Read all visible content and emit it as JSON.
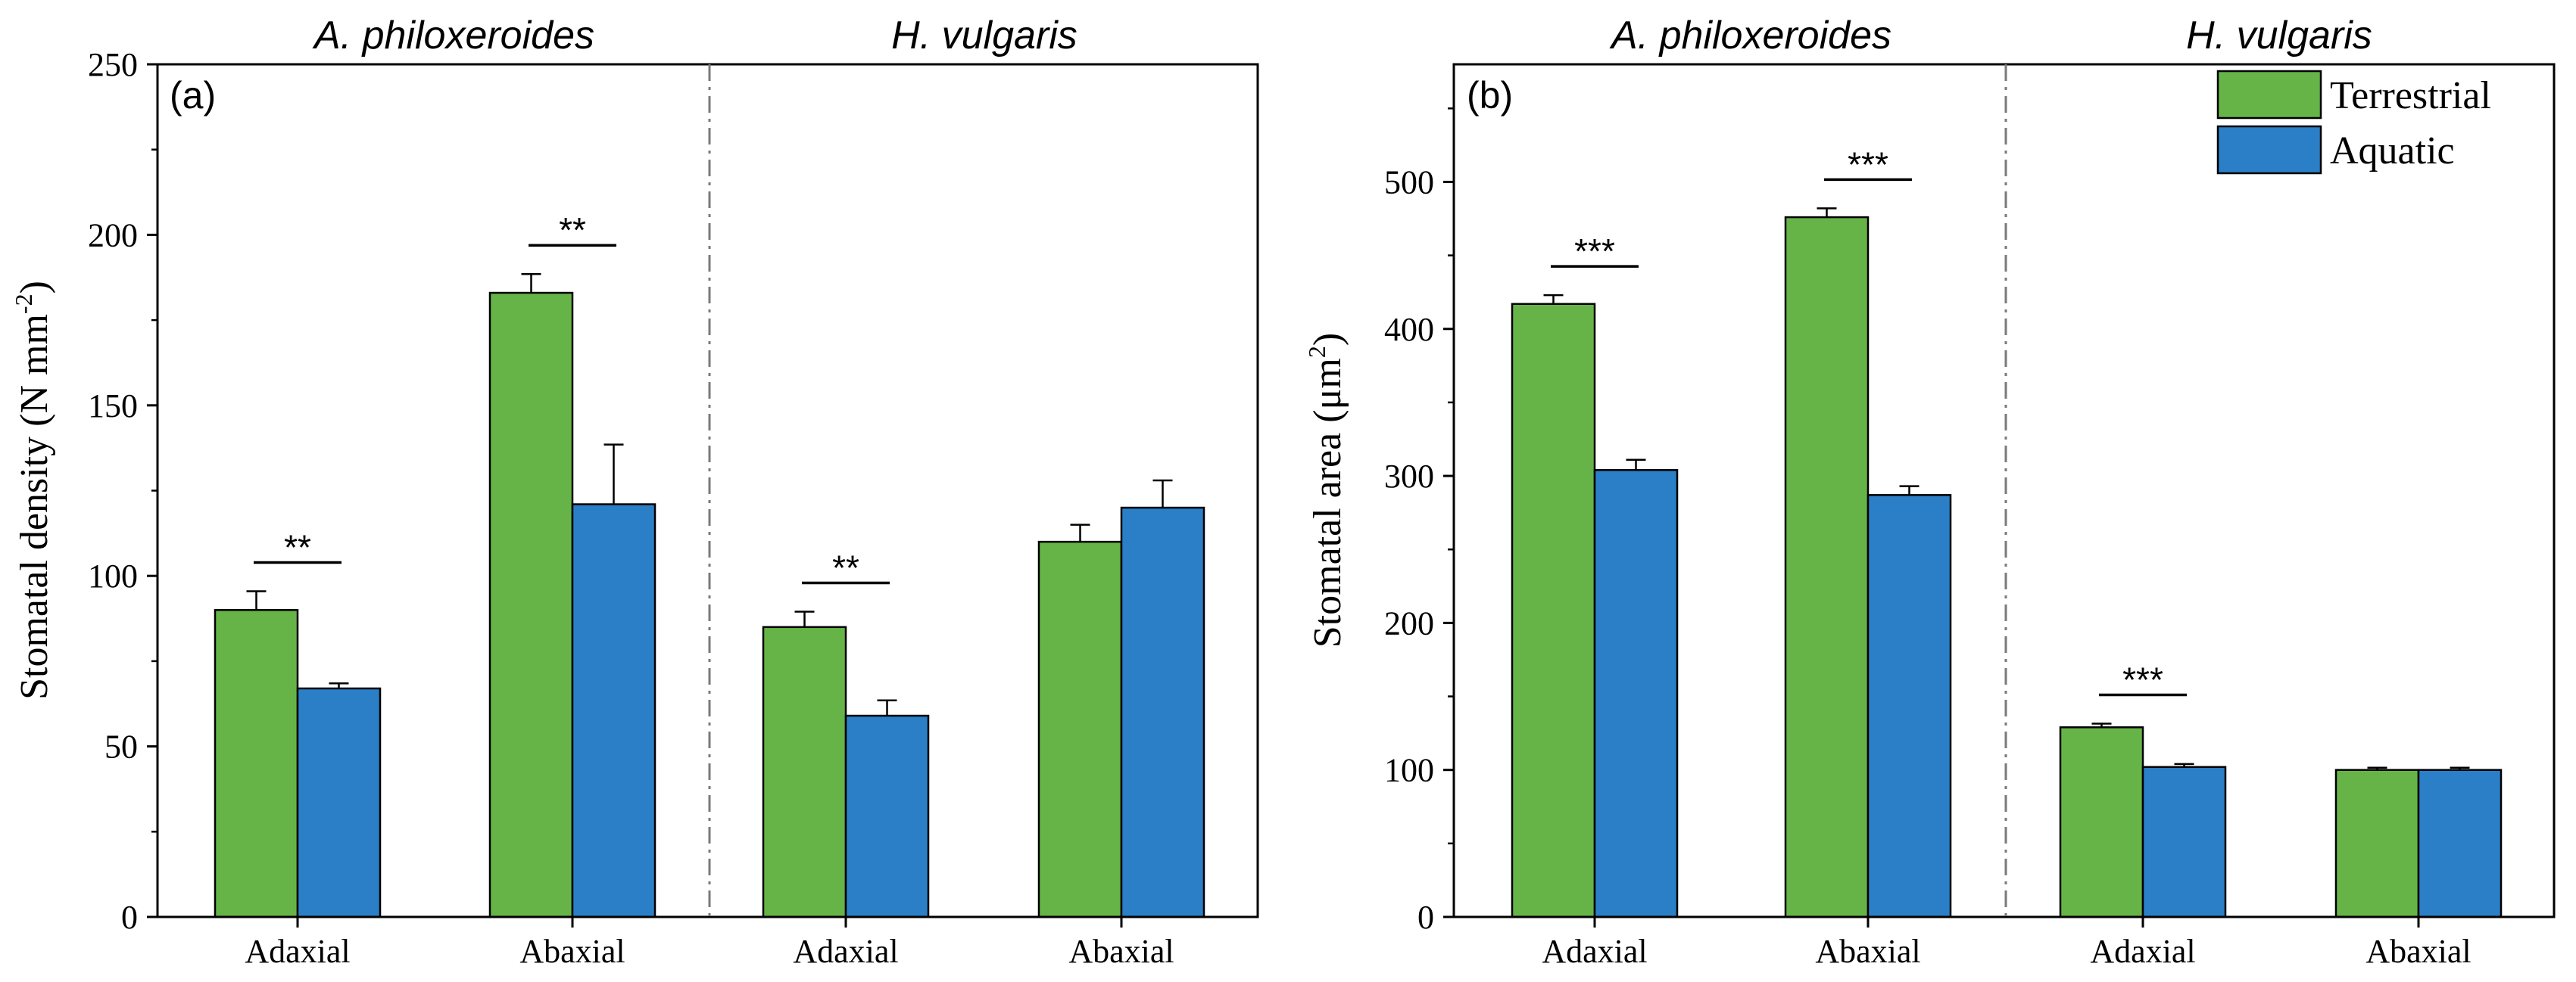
{
  "colors": {
    "terrestrial": "#66b447",
    "aquatic": "#2b7fc7",
    "axis": "#000000",
    "divider": "#7a7a7a"
  },
  "legend": {
    "placement": "top-right",
    "entries": [
      "Terrestrial",
      "Aquatic"
    ]
  },
  "chart_data": [
    {
      "type": "bar",
      "panel_label": "(a)",
      "ylabel": "Stomatal density (N mm",
      "ylabel_sup": "-2",
      "ylabel_end": ")",
      "ylim": [
        0,
        250
      ],
      "yticks": [
        0,
        50,
        100,
        150,
        200,
        250
      ],
      "minor_step": 25,
      "groups": [
        "A. philoxeroides",
        "H. vulgaris"
      ],
      "categories": [
        "Adaxial",
        "Abaxial",
        "Adaxial",
        "Abaxial"
      ],
      "series": [
        {
          "name": "Terrestrial",
          "values": [
            90,
            183,
            85,
            110
          ],
          "errors": [
            5.5,
            5.5,
            4.5,
            5
          ]
        },
        {
          "name": "Aquatic",
          "values": [
            67,
            121,
            59,
            120
          ],
          "errors": [
            1.5,
            17.5,
            4.5,
            8
          ]
        }
      ],
      "significance": [
        "**",
        "**",
        "**",
        ""
      ],
      "grid": false
    },
    {
      "type": "bar",
      "panel_label": "(b)",
      "ylabel": "Stomatal area (μm",
      "ylabel_sup": "2",
      "ylabel_end": ")",
      "ylim": [
        0,
        580
      ],
      "yticks": [
        0,
        100,
        200,
        300,
        400,
        500
      ],
      "minor_step": 50,
      "groups": [
        "A. philoxeroides",
        "H. vulgaris"
      ],
      "categories": [
        "Adaxial",
        "Abaxial",
        "Adaxial",
        "Abaxial"
      ],
      "series": [
        {
          "name": "Terrestrial",
          "values": [
            417,
            476,
            129,
            100
          ],
          "errors": [
            6,
            6,
            2.5,
            1.5
          ]
        },
        {
          "name": "Aquatic",
          "values": [
            304,
            287,
            102,
            100
          ],
          "errors": [
            7,
            6,
            2,
            1.5
          ]
        }
      ],
      "significance": [
        "***",
        "***",
        "***",
        ""
      ],
      "grid": false
    }
  ]
}
